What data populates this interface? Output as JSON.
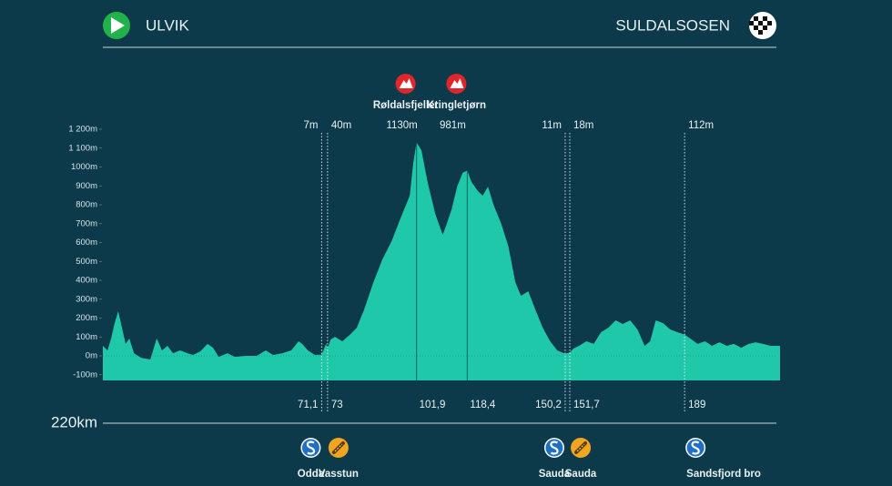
{
  "header": {
    "start": "ULVIK",
    "finish": "SULDALSOSEN"
  },
  "chart_data": {
    "type": "area",
    "color": "#1fc8a9",
    "line_color": "#0d3a4b",
    "x": [
      0,
      1.5,
      2.7,
      3.8,
      5.0,
      6.2,
      7.4,
      8.6,
      10.1,
      12.4,
      15.4,
      17.5,
      19.2,
      21.0,
      22.8,
      25.1,
      27.5,
      29.3,
      31.7,
      34.0,
      35.8,
      37.6,
      40.5,
      42.9,
      46.4,
      50.0,
      52.9,
      55.3,
      58.3,
      61.2,
      63.6,
      64.8,
      66.6,
      68.9,
      71.1,
      72.5,
      73.0,
      74.0,
      75.4,
      77.8,
      80.2,
      82.5,
      84.9,
      87.9,
      90.8,
      93.8,
      96.7,
      99.7,
      100.8,
      101.9,
      103.5,
      105.5,
      108.0,
      110.4,
      111.5,
      113.3,
      115.1,
      116.9,
      118.4,
      119.8,
      121.9,
      123.4,
      125.1,
      126.9,
      129.3,
      131.7,
      134.0,
      135.8,
      138.2,
      140.5,
      142.9,
      145.3,
      147.6,
      150.2,
      151.7,
      153.0,
      154.7,
      157.1,
      159.5,
      161.8,
      164.2,
      166.6,
      168.9,
      171.3,
      173.7,
      176.0,
      177.8,
      179.6,
      182.0,
      184.3,
      186.7,
      189.0,
      190.8,
      193.2,
      195.6,
      197.9,
      200.3,
      202.7,
      205.0,
      207.4,
      209.8,
      212.1,
      214.5,
      216.9,
      220
    ],
    "values": [
      53,
      29,
      92,
      173,
      236,
      149,
      63,
      92,
      14,
      -10,
      -19,
      92,
      29,
      53,
      14,
      29,
      14,
      5,
      24,
      63,
      43,
      -5,
      14,
      -5,
      0,
      0,
      29,
      5,
      14,
      29,
      77,
      63,
      29,
      5,
      7,
      63,
      40,
      87,
      101,
      77,
      111,
      149,
      246,
      390,
      511,
      607,
      728,
      848,
      1017,
      1130,
      1089,
      920,
      752,
      641,
      689,
      776,
      896,
      969,
      981,
      920,
      872,
      848,
      896,
      800,
      704,
      583,
      390,
      318,
      342,
      246,
      149,
      77,
      29,
      11,
      18,
      40,
      53,
      77,
      63,
      125,
      149,
      188,
      169,
      188,
      140,
      53,
      77,
      188,
      173,
      140,
      125,
      112,
      92,
      63,
      77,
      53,
      72,
      53,
      63,
      43,
      63,
      72,
      63,
      53,
      53
    ],
    "xlim": [
      0,
      220
    ],
    "ylim": [
      -130,
      1200
    ],
    "yticks": [
      {
        "value": -100,
        "label": "-100m"
      },
      {
        "value": 0,
        "label": "0m"
      },
      {
        "value": 100,
        "label": "100m"
      },
      {
        "value": 200,
        "label": "200m"
      },
      {
        "value": 300,
        "label": "300m"
      },
      {
        "value": 400,
        "label": "400m"
      },
      {
        "value": 500,
        "label": "500m"
      },
      {
        "value": 600,
        "label": "600m"
      },
      {
        "value": 700,
        "label": "700m"
      },
      {
        "value": 800,
        "label": "800m"
      },
      {
        "value": 900,
        "label": "900m"
      },
      {
        "value": 1000,
        "label": "1000m"
      },
      {
        "value": 1100,
        "label": "1 100m"
      },
      {
        "value": 1200,
        "label": "1 200m"
      }
    ],
    "distance": {
      "value": 220,
      "label": "220km"
    },
    "markers": [
      {
        "x": {
          "value": 71.1,
          "label": "71,1"
        },
        "elevation": {
          "value": 7,
          "label": "7m"
        },
        "place": "Odda",
        "icon": "sprint"
      },
      {
        "x": {
          "value": 73,
          "label": "73"
        },
        "elevation": {
          "value": 40,
          "label": "40m"
        },
        "place": "Vasstun",
        "icon": "feed"
      },
      {
        "x": {
          "value": 101.9,
          "label": "101,9"
        },
        "elevation": {
          "value": 1130,
          "label": "1130m"
        },
        "climb": "Røldalsfjellet"
      },
      {
        "x": {
          "value": 118.4,
          "label": "118,4"
        },
        "elevation": {
          "value": 981,
          "label": "981m"
        },
        "climb": "Kringletjørn"
      },
      {
        "x": {
          "value": 150.2,
          "label": "150,2"
        },
        "elevation": {
          "value": 11,
          "label": "11m"
        },
        "place": "Sauda",
        "icon": "sprint"
      },
      {
        "x": {
          "value": 151.7,
          "label": "151,7"
        },
        "elevation": {
          "value": 18,
          "label": "18m"
        },
        "place": "Sauda",
        "icon": "feed"
      },
      {
        "x": {
          "value": 189,
          "label": "189"
        },
        "elevation": {
          "value": 112,
          "label": "112m"
        },
        "place": "Sandsfjord bro",
        "icon": "sprint"
      }
    ]
  }
}
